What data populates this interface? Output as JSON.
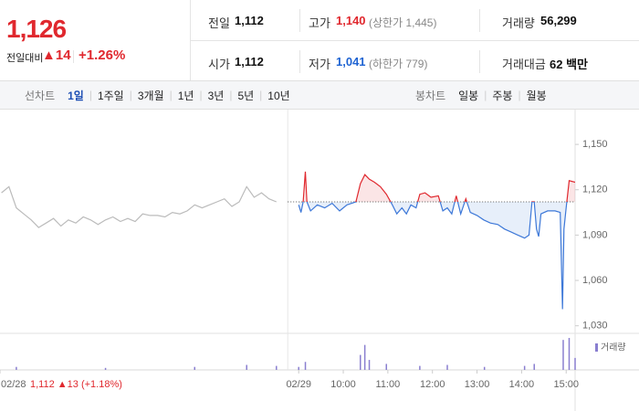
{
  "header": {
    "price": "1,126",
    "change_label": "전일대비",
    "change": "▲14",
    "change_pct": "+1.26%",
    "stats": [
      {
        "label": "전일",
        "value": "1,112"
      },
      {
        "label": "고가",
        "value": "1,140",
        "note": "(상한가 1,445)"
      },
      {
        "label": "거래량",
        "value": "56,299"
      },
      {
        "label": "시가",
        "value": "1,112"
      },
      {
        "label": "저가",
        "value": "1,041",
        "note": "(하한가 779)"
      },
      {
        "label": "거래대금",
        "value": "62 백만"
      }
    ]
  },
  "tabs": {
    "line": {
      "label": "선차트",
      "items": [
        "1일",
        "1주일",
        "3개월",
        "1년",
        "3년",
        "5년",
        "10년"
      ],
      "active": 0
    },
    "candle": {
      "label": "봉차트",
      "items": [
        "일봉",
        "주봉",
        "월봉"
      ]
    }
  },
  "chart_data": {
    "type": "line",
    "xlim": [
      -402,
      372
    ],
    "ylim": [
      1028,
      1170
    ],
    "yticks": [
      {
        "value": 1150,
        "label": "1,150"
      },
      {
        "value": 1120,
        "label": "1,120"
      },
      {
        "value": 1090,
        "label": "1,090"
      },
      {
        "value": 1060,
        "label": "1,060"
      },
      {
        "value": 1030,
        "label": "1,030"
      }
    ],
    "xticks": [
      {
        "value": -402,
        "label": "02/28"
      },
      {
        "value": 0,
        "label": "02/29"
      },
      {
        "value": 60,
        "label": "10:00"
      },
      {
        "value": 120,
        "label": "11:00"
      },
      {
        "value": 180,
        "label": "12:00"
      },
      {
        "value": 240,
        "label": "13:00"
      },
      {
        "value": 300,
        "label": "14:00"
      },
      {
        "value": 360,
        "label": "15:00"
      }
    ],
    "prev_summary": "1,112 ▲13 (+1.18%)",
    "reference": 1112,
    "series": [
      {
        "color": "#bbbbbb",
        "x": [
          -400,
          -390,
          -380,
          -370,
          -360,
          -350,
          -340,
          -330,
          -320,
          -310,
          -300,
          -290,
          -280,
          -270,
          -260,
          -250,
          -240,
          -230,
          -220,
          -210,
          -200,
          -190,
          -180,
          -170,
          -160,
          -150,
          -140,
          -130,
          -120,
          -110,
          -100,
          -90,
          -80,
          -70,
          -60,
          -50,
          -40,
          -30
        ],
        "values": [
          1118,
          1122,
          1108,
          1104,
          1100,
          1095,
          1098,
          1101,
          1096,
          1100,
          1098,
          1102,
          1100,
          1097,
          1100,
          1102,
          1099,
          1101,
          1099,
          1104,
          1103,
          1103,
          1102,
          1105,
          1104,
          1106,
          1110,
          1108,
          1110,
          1112,
          1114,
          1109,
          1112,
          1122,
          1115,
          1118,
          1114,
          1112
        ]
      },
      {
        "color_up": "#e0282e",
        "color_down": "#3d78d8",
        "x": [
          0,
          3,
          6,
          9,
          11,
          16,
          25,
          35,
          45,
          55,
          65,
          77,
          83,
          89,
          95,
          102,
          110,
          118,
          126,
          132,
          139,
          145,
          151,
          158,
          163,
          170,
          178,
          188,
          194,
          200,
          206,
          212,
          218,
          225,
          231,
          240,
          249,
          258,
          268,
          277,
          286,
          295,
          304,
          310,
          314,
          317,
          320,
          323,
          326,
          335,
          345,
          352,
          355,
          357,
          360,
          364,
          372
        ],
        "values": [
          1110,
          1105,
          1112,
          1132,
          1112,
          1106,
          1110,
          1108,
          1111,
          1106,
          1110,
          1112,
          1124,
          1130,
          1127,
          1125,
          1122,
          1117,
          1110,
          1104,
          1108,
          1104,
          1110,
          1108,
          1117,
          1118,
          1115,
          1116,
          1106,
          1108,
          1104,
          1116,
          1104,
          1114,
          1105,
          1103,
          1100,
          1098,
          1097,
          1094,
          1092,
          1090,
          1088,
          1090,
          1112,
          1112,
          1094,
          1089,
          1104,
          1106,
          1106,
          1105,
          1041,
          1094,
          1108,
          1126,
          1125
        ]
      }
    ],
    "volume": {
      "name": "거래량",
      "color": "#8a7fd0",
      "x": [
        -380,
        -260,
        -140,
        -70,
        -30,
        0,
        9,
        83,
        89,
        95,
        118,
        163,
        200,
        250,
        304,
        317,
        356,
        364,
        372
      ],
      "values": [
        3,
        2,
        3,
        5,
        4,
        3,
        8,
        15,
        25,
        10,
        6,
        4,
        5,
        3,
        4,
        6,
        30,
        32,
        12
      ]
    }
  }
}
